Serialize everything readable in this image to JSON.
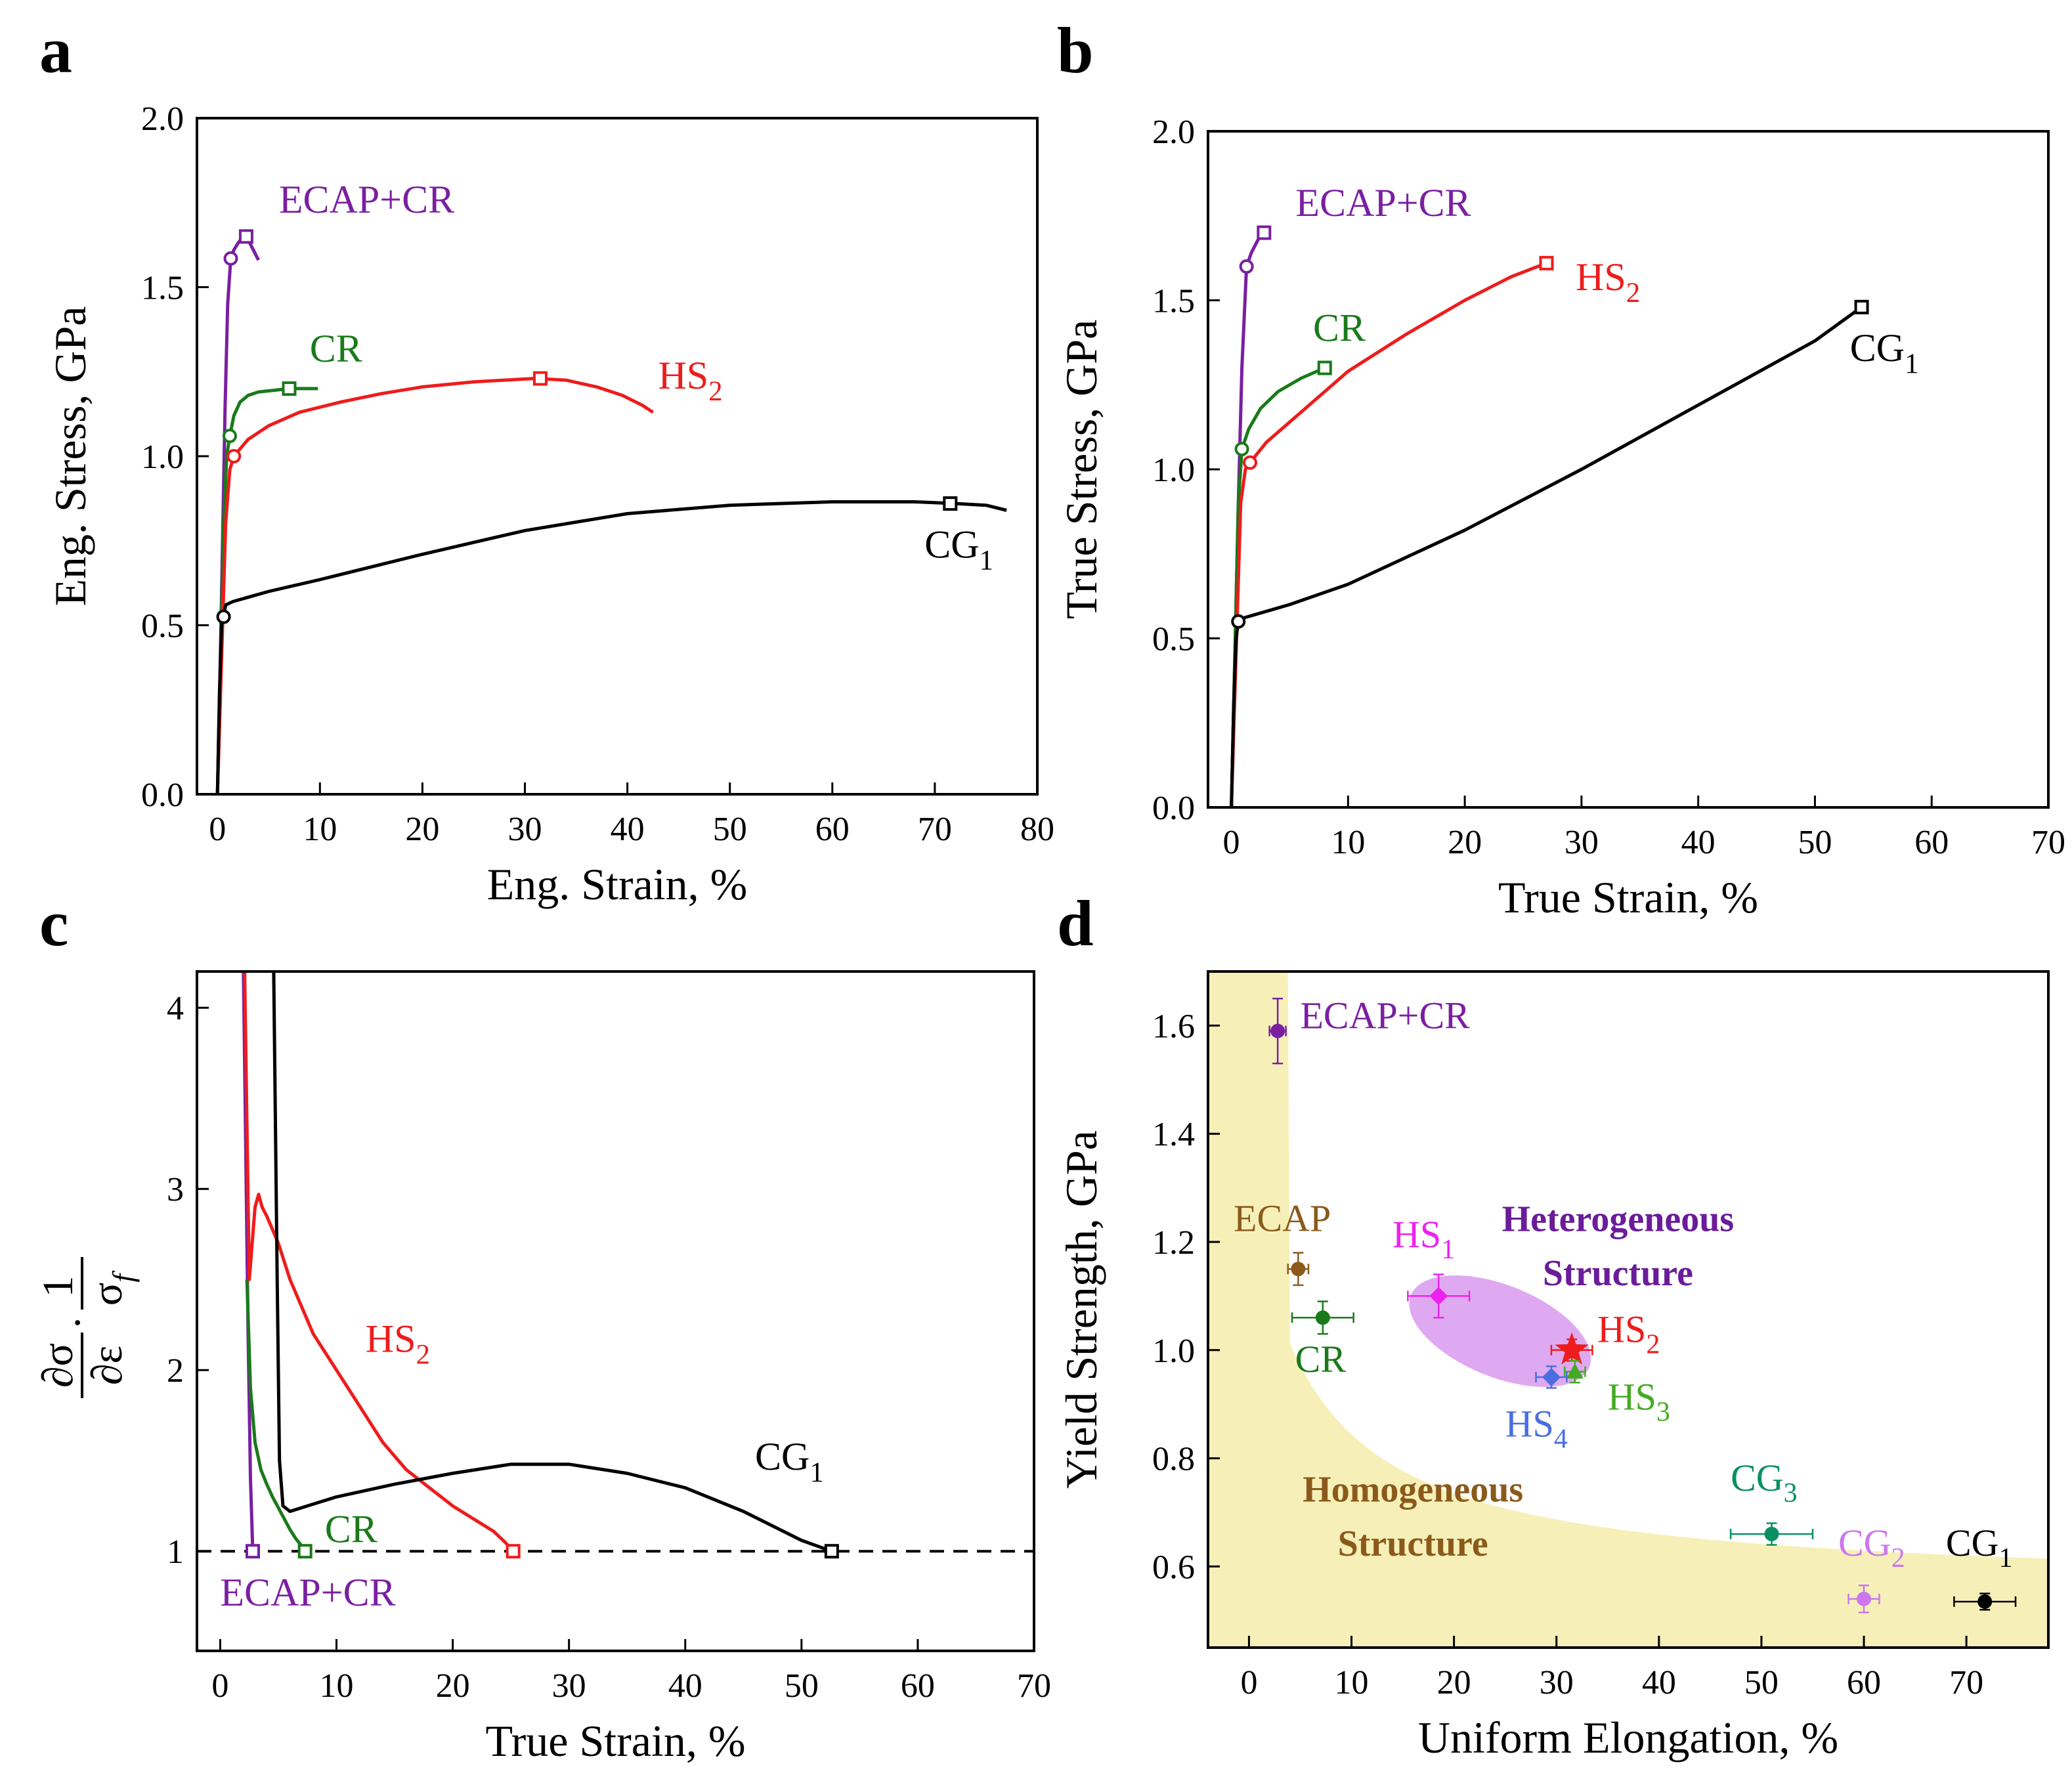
{
  "chart_data": [
    {
      "panel": "a",
      "type": "line",
      "xlabel": "Eng. Strain, %",
      "ylabel": "Eng. Stress, GPa",
      "xlim": [
        -2,
        80
      ],
      "ylim": [
        0,
        2.0
      ],
      "xticks": [
        0,
        10,
        20,
        30,
        40,
        50,
        60,
        70,
        80
      ],
      "yticks": [
        0.0,
        0.5,
        1.0,
        1.5,
        2.0
      ],
      "series": [
        {
          "name": "ECAP+CR",
          "color": "#7a1fa2",
          "label_sub": "",
          "x": [
            0,
            0.25,
            0.5,
            0.75,
            1.0,
            1.3,
            1.6,
            2.0,
            2.5,
            3.0,
            3.5,
            4.0
          ],
          "y": [
            0,
            0.35,
            0.75,
            1.15,
            1.45,
            1.585,
            1.61,
            1.63,
            1.65,
            1.64,
            1.61,
            1.58
          ],
          "yield": [
            1.3,
            1.585
          ],
          "uts": [
            2.8,
            1.65
          ],
          "label_pos": [
            6,
            1.72
          ]
        },
        {
          "name": "CR",
          "color": "#1a7a1a",
          "label_sub": "",
          "x": [
            0,
            0.3,
            0.6,
            0.9,
            1.2,
            1.6,
            2.2,
            3.0,
            4.0,
            5.5,
            7.0,
            8.5,
            9.8
          ],
          "y": [
            0,
            0.4,
            0.8,
            1.0,
            1.06,
            1.12,
            1.16,
            1.18,
            1.19,
            1.195,
            1.2,
            1.2,
            1.2
          ],
          "yield": [
            1.2,
            1.06
          ],
          "uts": [
            7.0,
            1.2
          ],
          "label_pos": [
            9,
            1.28
          ]
        },
        {
          "name": "HS",
          "color": "#ee1c1c",
          "label_sub": "2",
          "x": [
            0,
            0.4,
            0.8,
            1.2,
            1.6,
            3,
            5,
            8,
            12,
            16,
            20,
            25,
            31,
            34,
            37,
            39.5,
            41.5,
            42.5
          ],
          "y": [
            0,
            0.4,
            0.8,
            0.96,
            1.0,
            1.05,
            1.09,
            1.13,
            1.16,
            1.185,
            1.205,
            1.22,
            1.23,
            1.225,
            1.205,
            1.18,
            1.15,
            1.13
          ],
          "yield": [
            1.6,
            1.0
          ],
          "uts": [
            31.5,
            1.23
          ],
          "label_pos": [
            43,
            1.2
          ]
        },
        {
          "name": "CG",
          "color": "#000000",
          "label_sub": "1",
          "x": [
            0,
            0.2,
            0.4,
            0.6,
            0.8,
            1.5,
            5,
            10,
            20,
            30,
            40,
            50,
            60,
            68,
            72,
            75,
            77
          ],
          "y": [
            0,
            0.3,
            0.5,
            0.53,
            0.56,
            0.57,
            0.6,
            0.635,
            0.71,
            0.78,
            0.83,
            0.855,
            0.865,
            0.865,
            0.86,
            0.855,
            0.84
          ],
          "yield": [
            0.6,
            0.525
          ],
          "uts": [
            71.5,
            0.86
          ],
          "label_pos": [
            69,
            0.7
          ]
        }
      ]
    },
    {
      "panel": "b",
      "type": "line",
      "xlabel": "True Strain, %",
      "ylabel": "True Stress, GPa",
      "xlim": [
        -2,
        70
      ],
      "ylim": [
        0,
        2.0
      ],
      "xticks": [
        0,
        10,
        20,
        30,
        40,
        50,
        60,
        70
      ],
      "yticks": [
        0.0,
        0.5,
        1.0,
        1.5,
        2.0
      ],
      "series": [
        {
          "name": "ECAP+CR",
          "color": "#7a1fa2",
          "label_sub": "",
          "x": [
            0,
            0.3,
            0.6,
            0.9,
            1.3,
            1.7,
            2.3,
            2.8
          ],
          "y": [
            0,
            0.45,
            0.9,
            1.3,
            1.6,
            1.64,
            1.68,
            1.7
          ],
          "yield": [
            1.3,
            1.6
          ],
          "uts": [
            2.8,
            1.7
          ],
          "label_pos": [
            5.5,
            1.75
          ]
        },
        {
          "name": "CR",
          "color": "#1a7a1a",
          "label_sub": "",
          "x": [
            0,
            0.3,
            0.6,
            0.9,
            1.5,
            2.5,
            4,
            6,
            8
          ],
          "y": [
            0,
            0.45,
            0.9,
            1.06,
            1.12,
            1.18,
            1.23,
            1.27,
            1.3
          ],
          "yield": [
            0.9,
            1.06
          ],
          "uts": [
            8.0,
            1.3
          ],
          "label_pos": [
            7,
            1.38
          ]
        },
        {
          "name": "HS",
          "color": "#ee1c1c",
          "label_sub": "2",
          "x": [
            0,
            0.4,
            0.8,
            1.2,
            1.6,
            3,
            6,
            10,
            15,
            20,
            24,
            27
          ],
          "y": [
            0,
            0.45,
            0.9,
            1.0,
            1.02,
            1.08,
            1.17,
            1.29,
            1.4,
            1.5,
            1.57,
            1.61
          ],
          "yield": [
            1.6,
            1.02
          ],
          "uts": [
            27.0,
            1.61
          ],
          "label_pos": [
            29.5,
            1.53
          ]
        },
        {
          "name": "CG",
          "color": "#000000",
          "label_sub": "1",
          "x": [
            0,
            0.2,
            0.4,
            0.6,
            1,
            5,
            10,
            20,
            30,
            40,
            50,
            54
          ],
          "y": [
            0,
            0.3,
            0.5,
            0.55,
            0.56,
            0.6,
            0.66,
            0.82,
            1.0,
            1.19,
            1.38,
            1.48
          ],
          "yield": [
            0.6,
            0.55
          ],
          "uts": [
            54.0,
            1.48
          ],
          "label_pos": [
            53,
            1.32
          ]
        }
      ]
    },
    {
      "panel": "c",
      "type": "line",
      "xlabel": "True Strain, %",
      "ylabel": "∂σ/∂ε · 1/σ_f",
      "ylabel_num1": "∂σ",
      "ylabel_den1": "∂ε",
      "ylabel_num2": "1",
      "ylabel_den2": "σ",
      "ylabel_den2_sub": "f",
      "xlim": [
        -2,
        70
      ],
      "ylim": [
        0.45,
        4.2
      ],
      "xticks": [
        0,
        10,
        20,
        30,
        40,
        50,
        60,
        70
      ],
      "yticks": [
        1,
        2,
        3,
        4
      ],
      "reference_y": 1,
      "series": [
        {
          "name": "ECAP+CR",
          "color": "#7a1fa2",
          "label_sub": "",
          "x": [
            2.0,
            2.2,
            2.4,
            2.6,
            2.8
          ],
          "y": [
            4.2,
            3.2,
            2.2,
            1.4,
            1.0
          ],
          "end": [
            2.8,
            1.0
          ],
          "label_pos": [
            0,
            0.7
          ]
        },
        {
          "name": "CR",
          "color": "#1a7a1a",
          "label_sub": "",
          "x": [
            2.3,
            2.6,
            3.0,
            3.5,
            4.0,
            4.5,
            5.0,
            5.5,
            6.0,
            6.5,
            7.0,
            7.3
          ],
          "y": [
            2.5,
            1.9,
            1.6,
            1.45,
            1.37,
            1.3,
            1.24,
            1.18,
            1.12,
            1.07,
            1.03,
            1.0
          ],
          "end": [
            7.3,
            1.0
          ],
          "label_pos": [
            9,
            1.05
          ]
        },
        {
          "name": "HS",
          "color": "#ee1c1c",
          "label_sub": "2",
          "x": [
            2.1,
            2.5,
            3.0,
            3.3,
            3.6,
            4.0,
            5.0,
            6.0,
            7.0,
            8.0,
            9.0,
            10,
            12,
            14,
            16,
            18,
            20,
            22,
            23.5,
            24.5,
            25.2
          ],
          "y": [
            4.2,
            2.5,
            2.9,
            2.97,
            2.9,
            2.85,
            2.7,
            2.5,
            2.35,
            2.2,
            2.1,
            2.0,
            1.8,
            1.6,
            1.45,
            1.35,
            1.25,
            1.17,
            1.11,
            1.05,
            1.0
          ],
          "end": [
            25.2,
            1.0
          ],
          "label_pos": [
            12.5,
            2.1
          ]
        },
        {
          "name": "CG",
          "color": "#000000",
          "label_sub": "1",
          "x": [
            4.6,
            4.9,
            5.1,
            5.4,
            6,
            8,
            10,
            15,
            20,
            25,
            30,
            35,
            40,
            45,
            50,
            52.6
          ],
          "y": [
            4.2,
            2.5,
            1.5,
            1.25,
            1.22,
            1.26,
            1.3,
            1.37,
            1.43,
            1.48,
            1.48,
            1.43,
            1.35,
            1.22,
            1.06,
            1.0
          ],
          "end": [
            52.6,
            1.0
          ],
          "label_pos": [
            46,
            1.45
          ]
        }
      ]
    },
    {
      "panel": "d",
      "type": "scatter",
      "xlabel": "Uniform Elongation, %",
      "ylabel": "Yield Strength, GPa",
      "xlim": [
        -4,
        78
      ],
      "ylim": [
        0.45,
        1.7
      ],
      "xticks": [
        0,
        10,
        20,
        30,
        40,
        50,
        60,
        70
      ],
      "yticks": [
        0.6,
        0.8,
        1.0,
        1.2,
        1.4,
        1.6
      ],
      "region_labels": {
        "heterogeneous_line1": "Heterogeneous",
        "heterogeneous_line2": "Structure",
        "homogeneous_line1": "Homogeneous",
        "homogeneous_line2": "Structure"
      },
      "points": [
        {
          "name": "ECAP+CR",
          "sub": "",
          "x": 2.8,
          "y": 1.59,
          "xerr": 0.8,
          "yerr": 0.06,
          "color": "#7a1fa2",
          "marker": "circle",
          "label_pos": [
            5,
            1.595
          ]
        },
        {
          "name": "ECAP",
          "sub": "",
          "x": 4.8,
          "y": 1.15,
          "xerr": 1.0,
          "yerr": 0.03,
          "color": "#8b5a1b",
          "marker": "circle",
          "label_pos": [
            -1.5,
            1.22
          ]
        },
        {
          "name": "CR",
          "sub": "",
          "x": 7.2,
          "y": 1.06,
          "xerr": 3.0,
          "yerr": 0.03,
          "color": "#1a7a1a",
          "marker": "circle",
          "label_pos": [
            4.5,
            0.96
          ]
        },
        {
          "name": "HS",
          "sub": "1",
          "x": 18.5,
          "y": 1.1,
          "xerr": 3.0,
          "yerr": 0.04,
          "color": "#ee22ee",
          "marker": "diamond",
          "label_pos": [
            14,
            1.19
          ]
        },
        {
          "name": "HS",
          "sub": "2",
          "x": 31.5,
          "y": 1.0,
          "xerr": 2.0,
          "yerr": 0.02,
          "color": "#ee1c1c",
          "marker": "star",
          "label_pos": [
            34,
            1.015
          ]
        },
        {
          "name": "HS",
          "sub": "3",
          "x": 31.8,
          "y": 0.96,
          "xerr": 1.0,
          "yerr": 0.02,
          "color": "#44aa22",
          "marker": "triangle",
          "label_pos": [
            35,
            0.89
          ]
        },
        {
          "name": "HS",
          "sub": "4",
          "x": 29.5,
          "y": 0.95,
          "xerr": 1.5,
          "yerr": 0.02,
          "color": "#4a6ee0",
          "marker": "diamond",
          "label_pos": [
            25,
            0.84
          ]
        },
        {
          "name": "CG",
          "sub": "3",
          "x": 51,
          "y": 0.66,
          "xerr": 4.0,
          "yerr": 0.02,
          "color": "#0a9060",
          "marker": "circle",
          "label_pos": [
            47,
            0.74
          ]
        },
        {
          "name": "CG",
          "sub": "2",
          "x": 60,
          "y": 0.54,
          "xerr": 1.5,
          "yerr": 0.025,
          "color": "#cc77ee",
          "marker": "circle",
          "label_pos": [
            57.5,
            0.62
          ]
        },
        {
          "name": "CG",
          "sub": "1",
          "x": 71.8,
          "y": 0.535,
          "xerr": 3.0,
          "yerr": 0.015,
          "color": "#000000",
          "marker": "circle",
          "label_pos": [
            68,
            0.62
          ]
        }
      ]
    }
  ]
}
